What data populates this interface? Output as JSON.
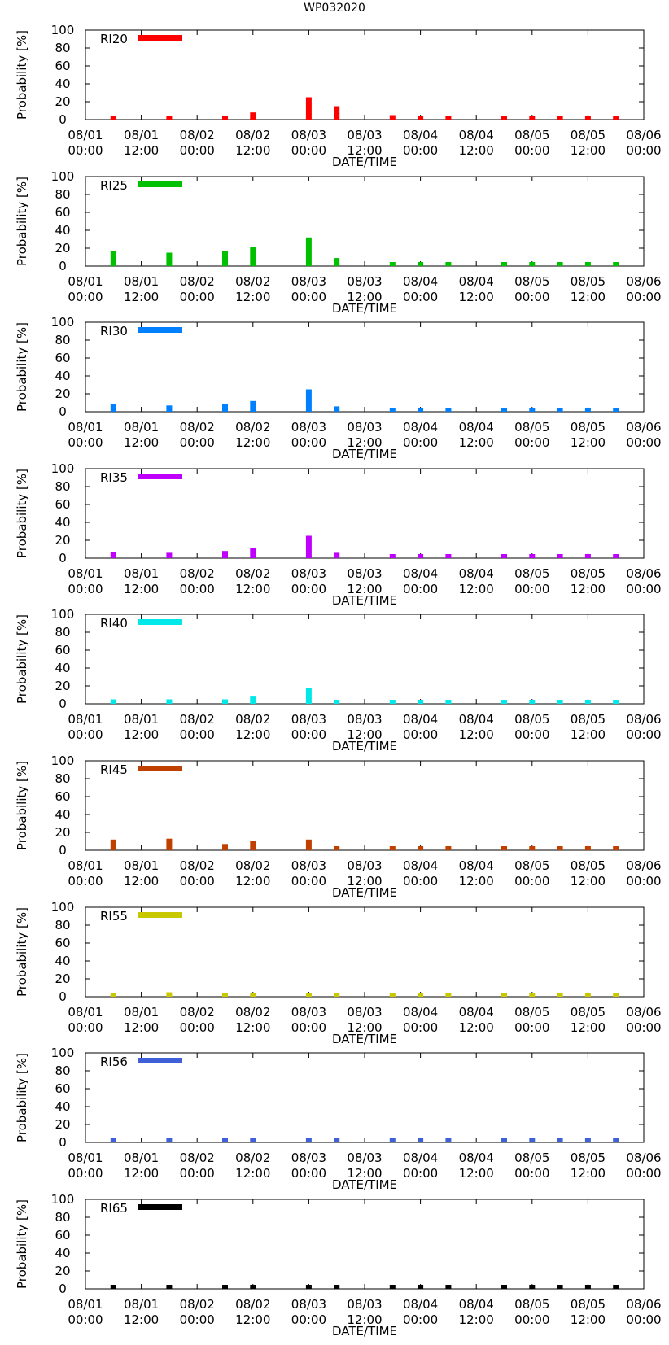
{
  "title": "WP032020",
  "chart_data": [
    {
      "type": "bar",
      "title": "RI20",
      "legend": "RI20",
      "color": "#ff0000",
      "ylabel": "Probability [%]",
      "xlabel": "DATE/TIME",
      "ylim": [
        0,
        100
      ],
      "yticks": [
        0,
        20,
        40,
        60,
        80,
        100
      ],
      "x_hours": [
        6,
        18,
        30,
        36,
        48,
        54,
        66,
        72,
        78,
        90,
        96,
        102,
        108,
        114
      ],
      "values": [
        3,
        4,
        4,
        8,
        25,
        15,
        5,
        1,
        1,
        1,
        1,
        1,
        1,
        1
      ],
      "xtick_labels": [
        [
          "08/01",
          "00:00"
        ],
        [
          "08/01",
          "12:00"
        ],
        [
          "08/02",
          "00:00"
        ],
        [
          "08/02",
          "12:00"
        ],
        [
          "08/03",
          "00:00"
        ],
        [
          "08/03",
          "12:00"
        ],
        [
          "08/04",
          "00:00"
        ],
        [
          "08/04",
          "12:00"
        ],
        [
          "08/05",
          "00:00"
        ],
        [
          "08/05",
          "12:00"
        ],
        [
          "08/06",
          "00:00"
        ]
      ],
      "xlim_hours": [
        0,
        120
      ]
    },
    {
      "type": "bar",
      "title": "RI25",
      "legend": "RI25",
      "color": "#00c000",
      "ylabel": "Probability [%]",
      "xlabel": "DATE/TIME",
      "ylim": [
        0,
        100
      ],
      "yticks": [
        0,
        20,
        40,
        60,
        80,
        100
      ],
      "x_hours": [
        6,
        18,
        30,
        36,
        48,
        54,
        66,
        72,
        78,
        90,
        96,
        102,
        108,
        114
      ],
      "values": [
        17,
        15,
        17,
        21,
        32,
        9,
        4,
        2,
        2,
        2,
        2,
        2,
        2,
        2
      ],
      "xtick_labels": [
        [
          "08/01",
          "00:00"
        ],
        [
          "08/01",
          "12:00"
        ],
        [
          "08/02",
          "00:00"
        ],
        [
          "08/02",
          "12:00"
        ],
        [
          "08/03",
          "00:00"
        ],
        [
          "08/03",
          "12:00"
        ],
        [
          "08/04",
          "00:00"
        ],
        [
          "08/04",
          "12:00"
        ],
        [
          "08/05",
          "00:00"
        ],
        [
          "08/05",
          "12:00"
        ],
        [
          "08/06",
          "00:00"
        ]
      ],
      "xlim_hours": [
        0,
        120
      ]
    },
    {
      "type": "bar",
      "title": "RI30",
      "legend": "RI30",
      "color": "#0080ff",
      "ylabel": "Probability [%]",
      "xlabel": "DATE/TIME",
      "ylim": [
        0,
        100
      ],
      "yticks": [
        0,
        20,
        40,
        60,
        80,
        100
      ],
      "x_hours": [
        6,
        18,
        30,
        36,
        48,
        54,
        66,
        72,
        78,
        90,
        96,
        102,
        108,
        114
      ],
      "values": [
        9,
        7,
        9,
        12,
        25,
        6,
        3,
        2,
        2,
        2,
        2,
        2,
        2,
        2
      ],
      "xtick_labels": [
        [
          "08/01",
          "00:00"
        ],
        [
          "08/01",
          "12:00"
        ],
        [
          "08/02",
          "00:00"
        ],
        [
          "08/02",
          "12:00"
        ],
        [
          "08/03",
          "00:00"
        ],
        [
          "08/03",
          "12:00"
        ],
        [
          "08/04",
          "00:00"
        ],
        [
          "08/04",
          "12:00"
        ],
        [
          "08/05",
          "00:00"
        ],
        [
          "08/05",
          "12:00"
        ],
        [
          "08/06",
          "00:00"
        ]
      ],
      "xlim_hours": [
        0,
        120
      ]
    },
    {
      "type": "bar",
      "title": "RI35",
      "legend": "RI35",
      "color": "#c000ff",
      "ylabel": "Probability [%]",
      "xlabel": "DATE/TIME",
      "ylim": [
        0,
        100
      ],
      "yticks": [
        0,
        20,
        40,
        60,
        80,
        100
      ],
      "x_hours": [
        6,
        18,
        30,
        36,
        48,
        54,
        66,
        72,
        78,
        90,
        96,
        102,
        108,
        114
      ],
      "values": [
        7,
        6,
        8,
        11,
        25,
        6,
        3,
        2,
        2,
        2,
        2,
        2,
        2,
        2
      ],
      "xtick_labels": [
        [
          "08/01",
          "00:00"
        ],
        [
          "08/01",
          "12:00"
        ],
        [
          "08/02",
          "00:00"
        ],
        [
          "08/02",
          "12:00"
        ],
        [
          "08/03",
          "00:00"
        ],
        [
          "08/03",
          "12:00"
        ],
        [
          "08/04",
          "00:00"
        ],
        [
          "08/04",
          "12:00"
        ],
        [
          "08/05",
          "00:00"
        ],
        [
          "08/05",
          "12:00"
        ],
        [
          "08/06",
          "00:00"
        ]
      ],
      "xlim_hours": [
        0,
        120
      ]
    },
    {
      "type": "bar",
      "title": "RI40",
      "legend": "RI40",
      "color": "#00e8e8",
      "ylabel": "Probability [%]",
      "xlabel": "DATE/TIME",
      "ylim": [
        0,
        100
      ],
      "yticks": [
        0,
        20,
        40,
        60,
        80,
        100
      ],
      "x_hours": [
        6,
        18,
        30,
        36,
        48,
        54,
        66,
        72,
        78,
        90,
        96,
        102,
        108,
        114
      ],
      "values": [
        5,
        5,
        5,
        9,
        18,
        4,
        3,
        2,
        2,
        2,
        2,
        2,
        2,
        2
      ],
      "xtick_labels": [
        [
          "08/01",
          "00:00"
        ],
        [
          "08/01",
          "12:00"
        ],
        [
          "08/02",
          "00:00"
        ],
        [
          "08/02",
          "12:00"
        ],
        [
          "08/03",
          "00:00"
        ],
        [
          "08/03",
          "12:00"
        ],
        [
          "08/04",
          "00:00"
        ],
        [
          "08/04",
          "12:00"
        ],
        [
          "08/05",
          "00:00"
        ],
        [
          "08/05",
          "12:00"
        ],
        [
          "08/06",
          "00:00"
        ]
      ],
      "xlim_hours": [
        0,
        120
      ]
    },
    {
      "type": "bar",
      "title": "RI45",
      "legend": "RI45",
      "color": "#c04000",
      "ylabel": "Probability [%]",
      "xlabel": "DATE/TIME",
      "ylim": [
        0,
        100
      ],
      "yticks": [
        0,
        20,
        40,
        60,
        80,
        100
      ],
      "x_hours": [
        6,
        18,
        30,
        36,
        48,
        54,
        66,
        72,
        78,
        90,
        96,
        102,
        108,
        114
      ],
      "values": [
        12,
        13,
        7,
        10,
        12,
        3,
        2,
        2,
        2,
        2,
        2,
        2,
        2,
        2
      ],
      "xtick_labels": [
        [
          "08/01",
          "00:00"
        ],
        [
          "08/01",
          "12:00"
        ],
        [
          "08/02",
          "00:00"
        ],
        [
          "08/02",
          "12:00"
        ],
        [
          "08/03",
          "00:00"
        ],
        [
          "08/03",
          "12:00"
        ],
        [
          "08/04",
          "00:00"
        ],
        [
          "08/04",
          "12:00"
        ],
        [
          "08/05",
          "00:00"
        ],
        [
          "08/05",
          "12:00"
        ],
        [
          "08/06",
          "00:00"
        ]
      ],
      "xlim_hours": [
        0,
        120
      ]
    },
    {
      "type": "bar",
      "title": "RI55",
      "legend": "RI55",
      "color": "#c8c800",
      "ylabel": "Probability [%]",
      "xlabel": "DATE/TIME",
      "ylim": [
        0,
        100
      ],
      "yticks": [
        0,
        20,
        40,
        60,
        80,
        100
      ],
      "x_hours": [
        6,
        18,
        30,
        36,
        48,
        54,
        66,
        72,
        78,
        90,
        96,
        102,
        108,
        114
      ],
      "values": [
        4,
        5,
        2,
        4,
        4,
        1,
        1,
        1,
        1,
        1,
        1,
        1,
        1,
        1
      ],
      "xtick_labels": [
        [
          "08/01",
          "00:00"
        ],
        [
          "08/01",
          "12:00"
        ],
        [
          "08/02",
          "00:00"
        ],
        [
          "08/02",
          "12:00"
        ],
        [
          "08/03",
          "00:00"
        ],
        [
          "08/03",
          "12:00"
        ],
        [
          "08/04",
          "00:00"
        ],
        [
          "08/04",
          "12:00"
        ],
        [
          "08/05",
          "00:00"
        ],
        [
          "08/05",
          "12:00"
        ],
        [
          "08/06",
          "00:00"
        ]
      ],
      "xlim_hours": [
        0,
        120
      ]
    },
    {
      "type": "bar",
      "title": "RI56",
      "legend": "RI56",
      "color": "#4060d8",
      "ylabel": "Probability [%]",
      "xlabel": "DATE/TIME",
      "ylim": [
        0,
        100
      ],
      "yticks": [
        0,
        20,
        40,
        60,
        80,
        100
      ],
      "x_hours": [
        6,
        18,
        30,
        36,
        48,
        54,
        66,
        72,
        78,
        90,
        96,
        102,
        108,
        114
      ],
      "values": [
        5,
        5,
        1,
        1,
        1,
        1,
        1,
        1,
        1,
        1,
        1,
        1,
        1,
        1
      ],
      "xtick_labels": [
        [
          "08/01",
          "00:00"
        ],
        [
          "08/01",
          "12:00"
        ],
        [
          "08/02",
          "00:00"
        ],
        [
          "08/02",
          "12:00"
        ],
        [
          "08/03",
          "00:00"
        ],
        [
          "08/03",
          "12:00"
        ],
        [
          "08/04",
          "00:00"
        ],
        [
          "08/04",
          "12:00"
        ],
        [
          "08/05",
          "00:00"
        ],
        [
          "08/05",
          "12:00"
        ],
        [
          "08/06",
          "00:00"
        ]
      ],
      "xlim_hours": [
        0,
        120
      ]
    },
    {
      "type": "bar",
      "title": "RI65",
      "legend": "RI65",
      "color": "#000000",
      "ylabel": "Probability [%]",
      "xlabel": "DATE/TIME",
      "ylim": [
        0,
        100
      ],
      "yticks": [
        0,
        20,
        40,
        60,
        80,
        100
      ],
      "x_hours": [
        6,
        18,
        30,
        36,
        48,
        54,
        66,
        72,
        78,
        90,
        96,
        102,
        108,
        114
      ],
      "values": [
        2,
        3,
        1,
        1,
        1,
        1,
        1,
        1,
        1,
        1,
        1,
        1,
        1,
        1
      ],
      "xtick_labels": [
        [
          "08/01",
          "00:00"
        ],
        [
          "08/01",
          "12:00"
        ],
        [
          "08/02",
          "00:00"
        ],
        [
          "08/02",
          "12:00"
        ],
        [
          "08/03",
          "00:00"
        ],
        [
          "08/03",
          "12:00"
        ],
        [
          "08/04",
          "00:00"
        ],
        [
          "08/04",
          "12:00"
        ],
        [
          "08/05",
          "00:00"
        ],
        [
          "08/05",
          "12:00"
        ],
        [
          "08/06",
          "00:00"
        ]
      ],
      "xlim_hours": [
        0,
        120
      ]
    }
  ]
}
